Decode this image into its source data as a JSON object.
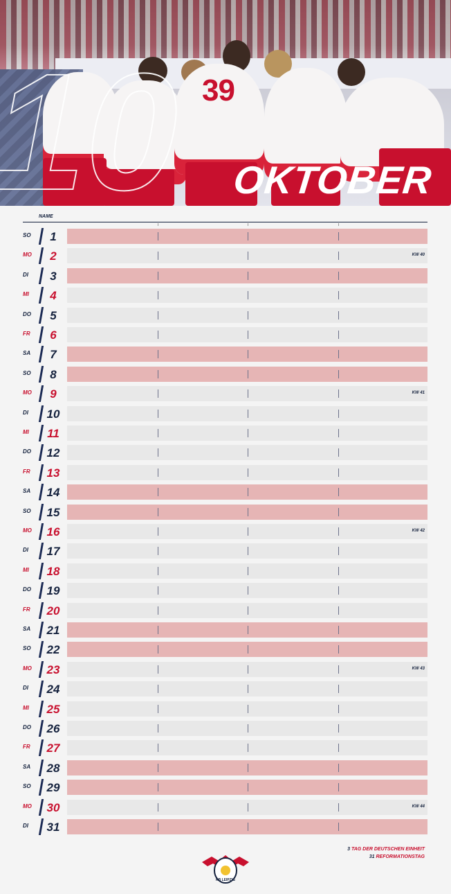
{
  "header": {
    "month_number": "10",
    "month_name": "OKTOBER",
    "jersey_number": "39"
  },
  "table": {
    "name_header": "NAME",
    "days": [
      {
        "wd": "SO",
        "day": "1",
        "kw": "",
        "weekend": true
      },
      {
        "wd": "MO",
        "day": "2",
        "kw": "KW 40",
        "weekend": false
      },
      {
        "wd": "DI",
        "day": "3",
        "kw": "",
        "weekend": true
      },
      {
        "wd": "MI",
        "day": "4",
        "kw": "",
        "weekend": false
      },
      {
        "wd": "DO",
        "day": "5",
        "kw": "",
        "weekend": false
      },
      {
        "wd": "FR",
        "day": "6",
        "kw": "",
        "weekend": false
      },
      {
        "wd": "SA",
        "day": "7",
        "kw": "",
        "weekend": true
      },
      {
        "wd": "SO",
        "day": "8",
        "kw": "",
        "weekend": true
      },
      {
        "wd": "MO",
        "day": "9",
        "kw": "KW 41",
        "weekend": false
      },
      {
        "wd": "DI",
        "day": "10",
        "kw": "",
        "weekend": false
      },
      {
        "wd": "MI",
        "day": "11",
        "kw": "",
        "weekend": false
      },
      {
        "wd": "DO",
        "day": "12",
        "kw": "",
        "weekend": false
      },
      {
        "wd": "FR",
        "day": "13",
        "kw": "",
        "weekend": false
      },
      {
        "wd": "SA",
        "day": "14",
        "kw": "",
        "weekend": true
      },
      {
        "wd": "SO",
        "day": "15",
        "kw": "",
        "weekend": true
      },
      {
        "wd": "MO",
        "day": "16",
        "kw": "KW 42",
        "weekend": false
      },
      {
        "wd": "DI",
        "day": "17",
        "kw": "",
        "weekend": false
      },
      {
        "wd": "MI",
        "day": "18",
        "kw": "",
        "weekend": false
      },
      {
        "wd": "DO",
        "day": "19",
        "kw": "",
        "weekend": false
      },
      {
        "wd": "FR",
        "day": "20",
        "kw": "",
        "weekend": false
      },
      {
        "wd": "SA",
        "day": "21",
        "kw": "",
        "weekend": true
      },
      {
        "wd": "SO",
        "day": "22",
        "kw": "",
        "weekend": true
      },
      {
        "wd": "MO",
        "day": "23",
        "kw": "KW 43",
        "weekend": false
      },
      {
        "wd": "DI",
        "day": "24",
        "kw": "",
        "weekend": false
      },
      {
        "wd": "MI",
        "day": "25",
        "kw": "",
        "weekend": false
      },
      {
        "wd": "DO",
        "day": "26",
        "kw": "",
        "weekend": false
      },
      {
        "wd": "FR",
        "day": "27",
        "kw": "",
        "weekend": false
      },
      {
        "wd": "SA",
        "day": "28",
        "kw": "",
        "weekend": true
      },
      {
        "wd": "SO",
        "day": "29",
        "kw": "",
        "weekend": true
      },
      {
        "wd": "MO",
        "day": "30",
        "kw": "KW 44",
        "weekend": false
      },
      {
        "wd": "DI",
        "day": "31",
        "kw": "",
        "weekend": true
      }
    ]
  },
  "holidays": [
    {
      "num": "3",
      "text": "TAG DER DEUTSCHEN EINHEIT"
    },
    {
      "num": "31",
      "text": "REFORMATIONSTAG"
    }
  ],
  "logo": {
    "text": "RB LEIPZIG"
  },
  "colors": {
    "red": "#c8102e",
    "navy": "#14213d",
    "pink": "#e6b5b5",
    "grey": "#e8e8e8"
  }
}
